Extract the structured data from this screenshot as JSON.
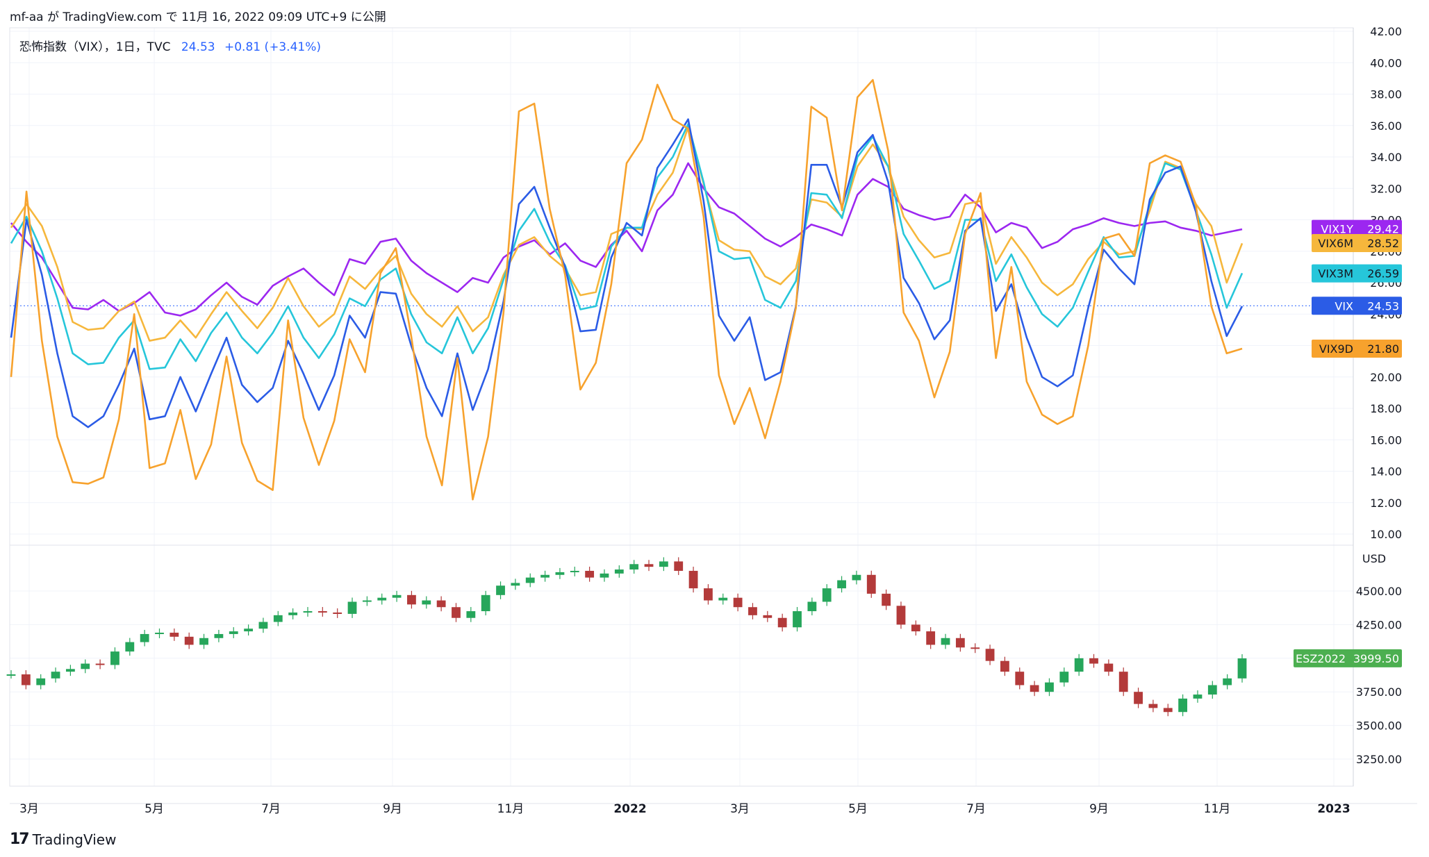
{
  "header": {
    "attribution": "mf-aa が TradingView.com で 11月 16, 2022 09:09 UTC+9 に公開"
  },
  "legend": {
    "title": "恐怖指数（VIX），1日，TVC",
    "value": "24.53",
    "change": "+0.81 (+3.41%)"
  },
  "footer": {
    "brand": "TradingView",
    "logo": "17"
  },
  "chart_data": {
    "type": "line",
    "vix_panel": {
      "y_ticks": [
        "42.00",
        "40.00",
        "38.00",
        "36.00",
        "34.00",
        "32.00",
        "30.00",
        "28.00",
        "26.00",
        "24.00",
        "22.00",
        "20.00",
        "18.00",
        "16.00",
        "14.00",
        "12.00",
        "10.00"
      ],
      "ylim": [
        10,
        42
      ],
      "reference_level": 24.53,
      "series": [
        {
          "name": "VIX1Y",
          "color": "#9c27f0",
          "last": "29.42",
          "values": [
            29.8,
            28.6,
            27.6,
            26.0,
            24.4,
            24.3,
            24.9,
            24.2,
            24.7,
            25.4,
            24.1,
            23.9,
            24.3,
            25.2,
            26.0,
            25.1,
            24.6,
            25.8,
            26.4,
            26.9,
            26.0,
            25.2,
            27.5,
            27.2,
            28.6,
            28.8,
            27.4,
            26.6,
            26.0,
            25.4,
            26.3,
            26.0,
            27.6,
            28.3,
            28.7,
            27.8,
            28.5,
            27.4,
            27.0,
            28.4,
            29.3,
            28.0,
            30.6,
            31.6,
            33.6,
            32.0,
            30.8,
            30.4,
            29.6,
            28.8,
            28.3,
            28.9,
            29.7,
            29.4,
            29.0,
            31.6,
            32.6,
            32.1,
            30.7,
            30.3,
            30.0,
            30.2,
            31.6,
            30.8,
            29.2,
            29.8,
            29.5,
            28.2,
            28.6,
            29.4,
            29.7,
            30.1,
            29.8,
            29.6,
            29.8,
            29.9,
            29.5,
            29.3,
            29.0,
            29.2,
            29.4
          ]
        },
        {
          "name": "VIX6M",
          "color": "#f6b73c",
          "last": "28.52",
          "values": [
            29.5,
            31.0,
            29.6,
            27.0,
            23.5,
            23.0,
            23.1,
            24.2,
            24.8,
            22.3,
            22.5,
            23.6,
            22.5,
            24.0,
            25.4,
            24.2,
            23.1,
            24.4,
            26.3,
            24.5,
            23.2,
            24.0,
            26.4,
            25.6,
            26.8,
            27.7,
            25.3,
            24.0,
            23.2,
            24.5,
            22.9,
            23.8,
            26.5,
            28.4,
            28.9,
            27.7,
            26.9,
            25.2,
            25.4,
            29.1,
            29.5,
            29.4,
            31.6,
            33.0,
            35.9,
            32.3,
            28.7,
            28.1,
            28.0,
            26.4,
            25.9,
            26.9,
            31.3,
            31.1,
            30.2,
            33.4,
            34.8,
            33.4,
            30.2,
            28.7,
            27.6,
            27.9,
            31.0,
            31.2,
            27.2,
            28.9,
            27.6,
            26.0,
            25.2,
            25.9,
            27.5,
            28.6,
            27.8,
            28.0,
            30.6,
            33.7,
            33.3,
            31.0,
            29.6,
            26.0,
            28.5
          ]
        },
        {
          "name": "VIX3M",
          "color": "#26c6da",
          "last": "26.59",
          "values": [
            28.5,
            30.2,
            28.0,
            25.0,
            21.5,
            20.8,
            20.9,
            22.5,
            23.6,
            20.5,
            20.6,
            22.4,
            21.0,
            22.8,
            24.1,
            22.5,
            21.5,
            22.8,
            24.5,
            22.5,
            21.2,
            22.7,
            25.0,
            24.5,
            26.2,
            26.9,
            24.0,
            22.2,
            21.5,
            23.8,
            21.5,
            23.1,
            26.2,
            29.3,
            30.7,
            28.6,
            27.1,
            24.3,
            24.5,
            28.3,
            29.5,
            29.5,
            32.7,
            34.0,
            36.1,
            32.4,
            28.0,
            27.5,
            27.6,
            24.9,
            24.4,
            26.1,
            31.7,
            31.6,
            30.1,
            34.0,
            35.3,
            33.4,
            29.1,
            27.4,
            25.6,
            26.1,
            30.0,
            30.0,
            26.1,
            27.8,
            25.7,
            24.0,
            23.2,
            24.4,
            26.7,
            28.9,
            27.6,
            27.7,
            31.0,
            33.6,
            33.2,
            30.6,
            27.8,
            24.4,
            26.6
          ]
        },
        {
          "name": "VIX",
          "color": "#2b5ce6",
          "last": "24.53",
          "values": [
            22.5,
            30.0,
            26.5,
            21.5,
            17.5,
            16.8,
            17.5,
            19.5,
            21.8,
            17.3,
            17.5,
            20.0,
            17.8,
            20.2,
            22.5,
            19.5,
            18.4,
            19.3,
            22.3,
            20.2,
            17.9,
            20.1,
            23.9,
            22.5,
            25.4,
            25.3,
            22.0,
            19.3,
            17.5,
            21.5,
            17.9,
            20.5,
            24.8,
            31.0,
            32.1,
            29.5,
            27.0,
            22.9,
            23.0,
            27.6,
            29.8,
            29.0,
            33.3,
            34.8,
            36.4,
            31.2,
            23.9,
            22.3,
            23.8,
            19.8,
            20.3,
            24.5,
            33.5,
            33.5,
            30.8,
            34.3,
            35.4,
            32.4,
            26.3,
            24.7,
            22.4,
            23.6,
            29.3,
            30.1,
            24.2,
            25.9,
            22.5,
            20.0,
            19.4,
            20.1,
            24.4,
            28.1,
            26.9,
            25.9,
            31.3,
            33.0,
            33.4,
            30.5,
            26.1,
            22.6,
            24.5
          ]
        },
        {
          "name": "VIX9D",
          "color": "#f7a22d",
          "last": "21.80",
          "values": [
            20.0,
            31.8,
            22.3,
            16.2,
            13.3,
            13.2,
            13.6,
            17.3,
            24.0,
            14.2,
            14.5,
            17.9,
            13.5,
            15.7,
            21.3,
            15.8,
            13.4,
            12.8,
            23.6,
            17.4,
            14.4,
            17.2,
            22.4,
            20.3,
            26.6,
            28.2,
            22.6,
            16.2,
            13.1,
            21.2,
            12.2,
            16.2,
            24.1,
            36.9,
            37.4,
            30.7,
            26.5,
            19.2,
            20.9,
            25.9,
            33.6,
            35.1,
            38.6,
            36.4,
            35.8,
            30.2,
            20.1,
            17.0,
            19.3,
            16.1,
            19.7,
            24.4,
            37.2,
            36.5,
            30.6,
            37.8,
            38.9,
            34.4,
            24.1,
            22.3,
            18.7,
            21.6,
            29.1,
            31.7,
            21.2,
            27.0,
            19.7,
            17.6,
            17.0,
            17.5,
            22.0,
            28.8,
            29.1,
            27.7,
            33.6,
            34.1,
            33.7,
            30.9,
            24.5,
            21.5,
            21.8
          ]
        }
      ]
    },
    "es_panel": {
      "currency": "USD",
      "y_ticks": [
        "4500.00",
        "4250.00",
        "4000.00",
        "3750.00",
        "3500.00",
        "3250.00"
      ],
      "ylim": [
        3100,
        4780
      ],
      "series": [
        {
          "name": "ESZ2022",
          "color": "#22a35a",
          "last": "3999.50",
          "values": [
            3880,
            3800,
            3850,
            3900,
            3920,
            3960,
            3950,
            4050,
            4120,
            4180,
            4190,
            4160,
            4100,
            4150,
            4180,
            4200,
            4220,
            4270,
            4320,
            4340,
            4350,
            4340,
            4330,
            4420,
            4430,
            4450,
            4470,
            4400,
            4430,
            4380,
            4300,
            4350,
            4470,
            4540,
            4560,
            4600,
            4620,
            4640,
            4650,
            4600,
            4630,
            4660,
            4700,
            4680,
            4720,
            4650,
            4520,
            4430,
            4450,
            4380,
            4320,
            4300,
            4230,
            4350,
            4420,
            4520,
            4580,
            4620,
            4480,
            4390,
            4250,
            4200,
            4100,
            4150,
            4080,
            4070,
            3980,
            3900,
            3800,
            3750,
            3820,
            3900,
            4000,
            3960,
            3900,
            3750,
            3660,
            3630,
            3600,
            3700,
            3730,
            3800,
            3850,
            3999
          ]
        }
      ]
    },
    "x_ticks": [
      "3月",
      "5月",
      "7月",
      "9月",
      "11月",
      "2022",
      "3月",
      "5月",
      "7月",
      "9月",
      "11月",
      "2023"
    ]
  }
}
